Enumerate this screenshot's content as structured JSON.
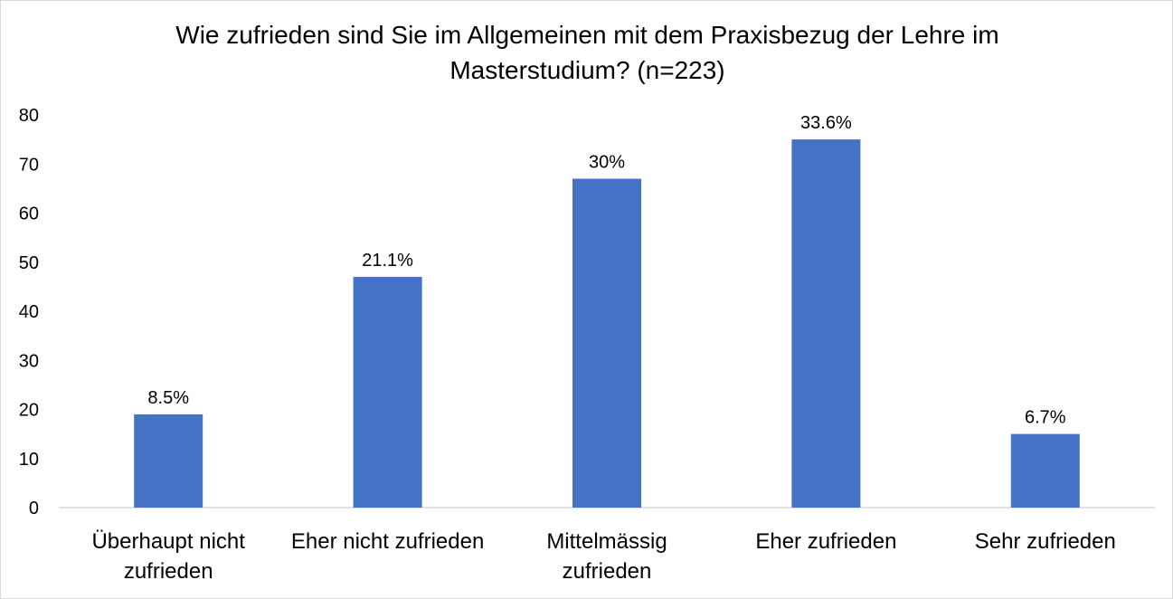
{
  "chart_data": {
    "type": "bar",
    "title": "Wie zufrieden sind Sie im Allgemeinen mit dem Praxisbezug der Lehre im Masterstudium? (n=223)",
    "categories": [
      [
        "Überhaupt nicht",
        "zufrieden"
      ],
      [
        "Eher nicht zufrieden"
      ],
      [
        "Mittelmässig",
        "zufrieden"
      ],
      [
        "Eher zufrieden"
      ],
      [
        "Sehr zufrieden"
      ]
    ],
    "values": [
      19,
      47,
      67,
      75,
      15
    ],
    "data_labels": [
      "8.5%",
      "21.1%",
      "30%",
      "33.6%",
      "6.7%"
    ],
    "ylim": [
      0,
      80
    ],
    "yticks": [
      0,
      10,
      20,
      30,
      40,
      50,
      60,
      70,
      80
    ],
    "grid": false,
    "legend": "none",
    "bar_color": "#4472c4",
    "axis_color": "#d9d9d9"
  }
}
